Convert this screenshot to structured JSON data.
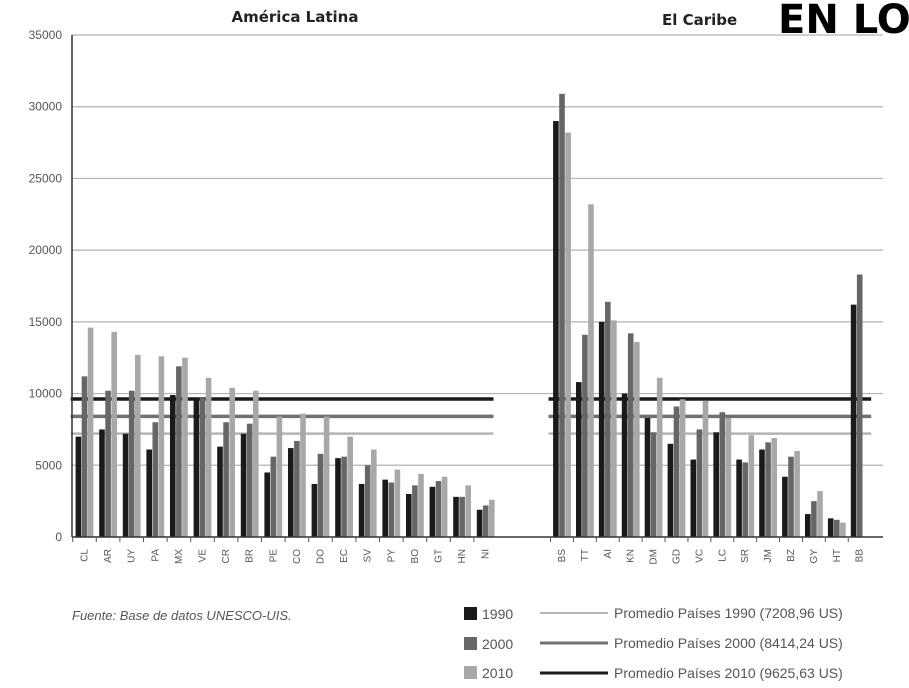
{
  "chart_data": {
    "type": "bar",
    "panels": [
      {
        "title": "América Latina",
        "categories": [
          "CL",
          "AR",
          "UY",
          "PA",
          "MX",
          "VE",
          "CR",
          "BR",
          "PE",
          "CO",
          "DO",
          "EC",
          "SV",
          "PY",
          "BO",
          "GT",
          "HN",
          "NI"
        ],
        "series": [
          {
            "name": "1990",
            "values": [
              7000,
              7500,
              7200,
              6100,
              9900,
              9600,
              6300,
              7200,
              4500,
              6200,
              3700,
              5500,
              3700,
              4000,
              3000,
              3500,
              2800,
              1900
            ]
          },
          {
            "name": "2000",
            "values": [
              11200,
              10200,
              10200,
              8000,
              11900,
              9700,
              8000,
              7900,
              5600,
              6700,
              5800,
              5600,
              5000,
              3800,
              3600,
              3900,
              2800,
              2200
            ]
          },
          {
            "name": "2010",
            "values": [
              14600,
              14300,
              12700,
              12600,
              12500,
              11100,
              10400,
              10200,
              8400,
              8600,
              8400,
              7000,
              6100,
              4700,
              4400,
              4200,
              3600,
              2600
            ]
          }
        ]
      },
      {
        "title": "El Caribe",
        "categories": [
          "BS",
          "TT",
          "AI",
          "KN",
          "DM",
          "GD",
          "VC",
          "LC",
          "SR",
          "JM",
          "BZ",
          "GY",
          "HT",
          "BB"
        ],
        "series": [
          {
            "name": "1990",
            "values": [
              29000,
              10800,
              15000,
              10000,
              8300,
              6500,
              5400,
              7300,
              5400,
              6100,
              4200,
              1600,
              1300,
              16200
            ]
          },
          {
            "name": "2000",
            "values": [
              30900,
              14100,
              16400,
              14200,
              7300,
              9100,
              7500,
              8700,
              5200,
              6600,
              5600,
              2500,
              1200,
              18300
            ]
          },
          {
            "name": "2010",
            "values": [
              28200,
              23200,
              15100,
              13600,
              11100,
              9600,
              9500,
              8300,
              7100,
              6900,
              6000,
              3200,
              1000,
              0
            ]
          }
        ]
      }
    ],
    "averages": [
      {
        "name": "Promedio Países 1990 (7208,96 US)",
        "value": 7208.96
      },
      {
        "name": "Promedio Países 2000 (8414,24 US)",
        "value": 8414.24
      },
      {
        "name": "Promedio Países 2010 (9625,63 US)",
        "value": 9625.63
      }
    ],
    "ylim": [
      0,
      35000
    ],
    "yticks": [
      "0",
      "5000",
      "10000",
      "15000",
      "20000",
      "25000",
      "30000",
      "35000"
    ],
    "grid": true,
    "legend_placement": "bottom-right",
    "colors": {
      "1990": "#1a1a1a",
      "2000": "#666666",
      "2010": "#a8a8a8"
    },
    "average_colors": {
      "1990": "#b5b5b5",
      "2000": "#707070",
      "2010": "#1a1a1a"
    },
    "source_note": "Fuente: Base de datos UNESCO-UIS.",
    "overlay_text": "EN LO"
  }
}
